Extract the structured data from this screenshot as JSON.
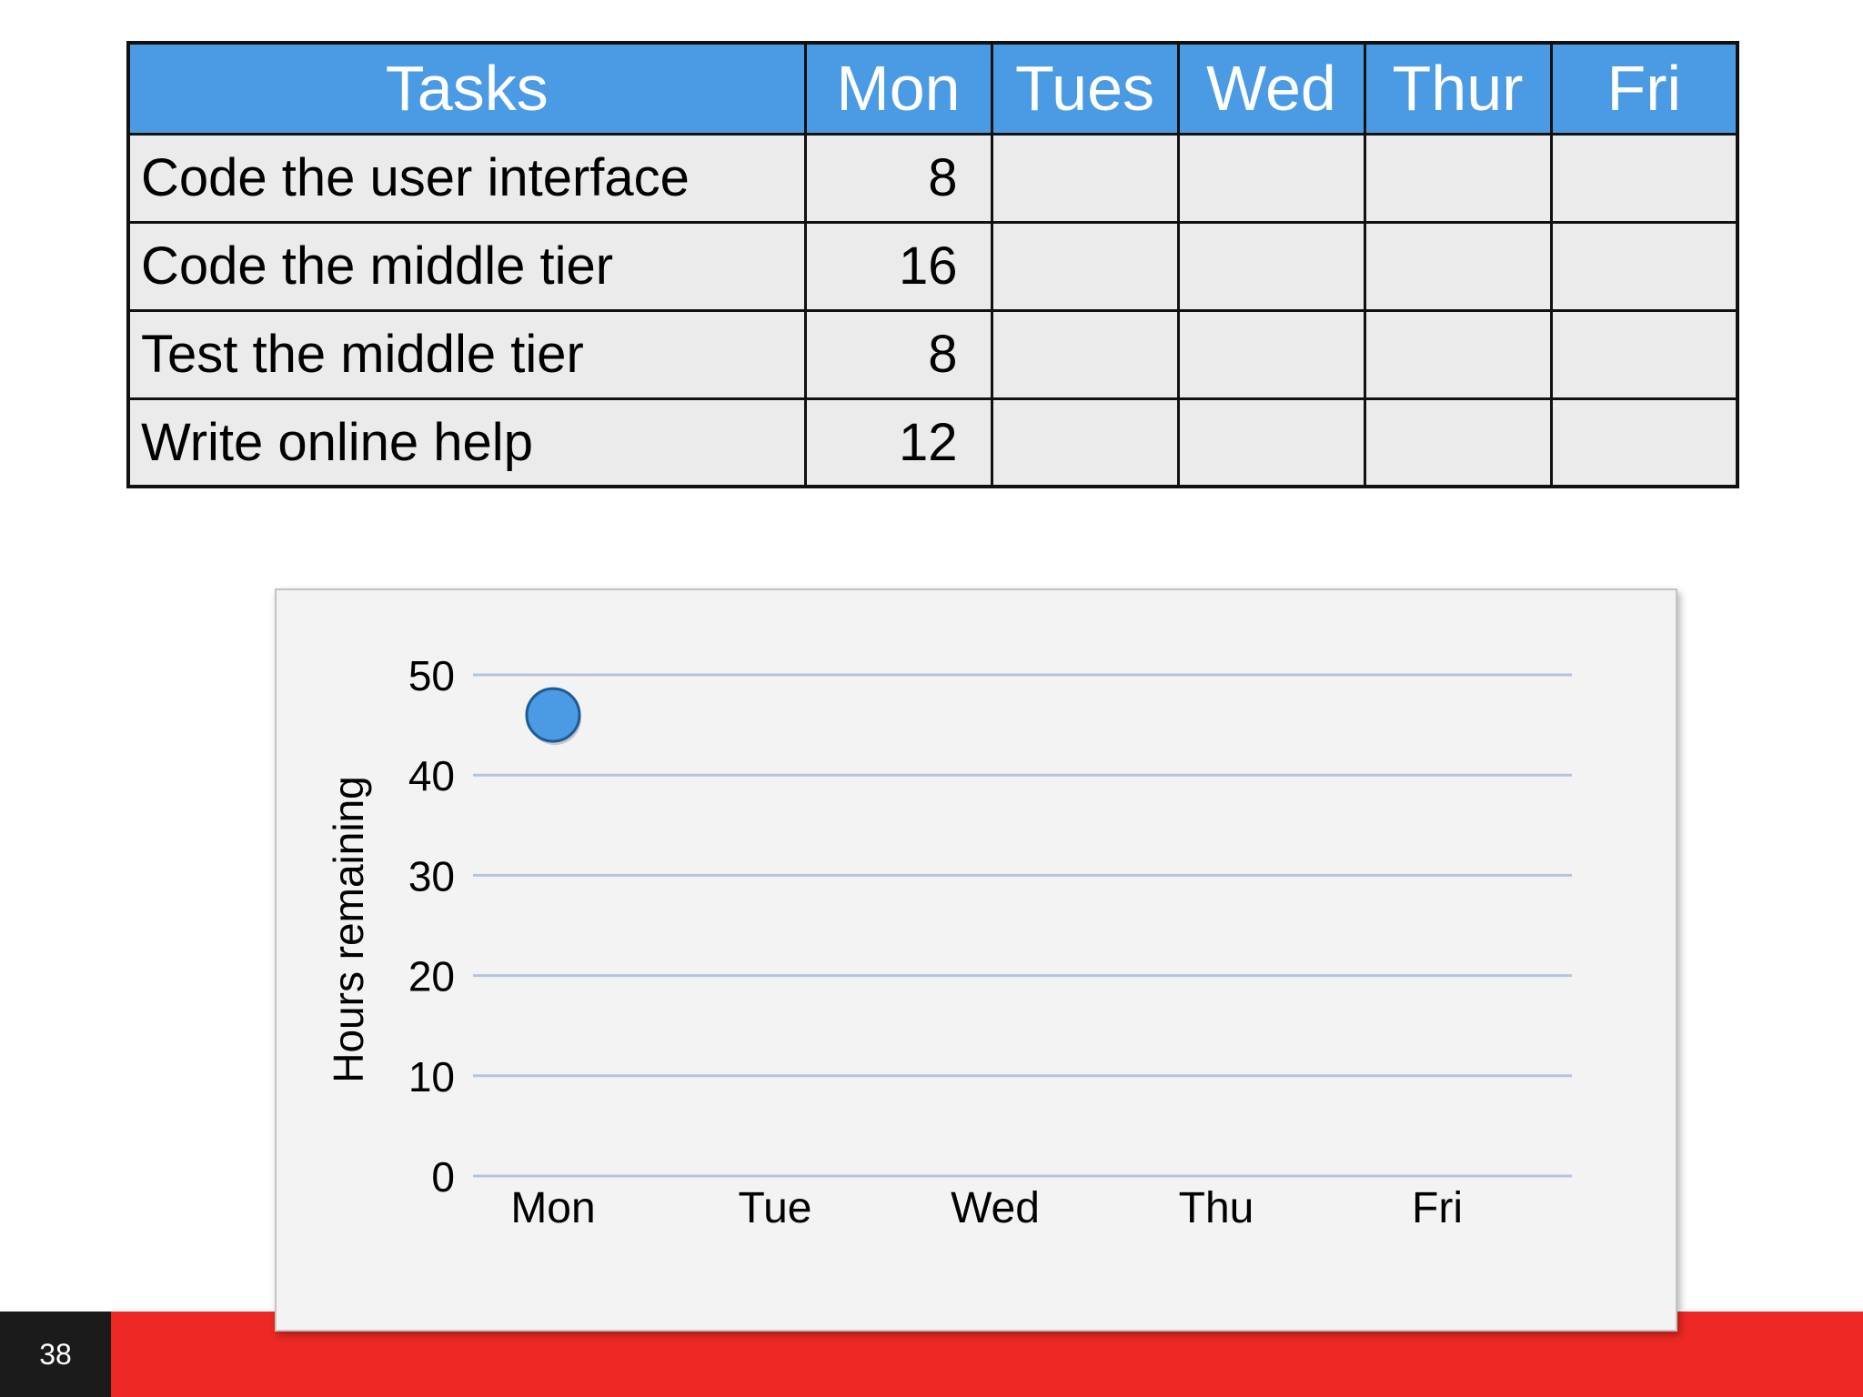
{
  "table": {
    "headers": [
      "Tasks",
      "Mon",
      "Tues",
      "Wed",
      "Thur",
      "Fri"
    ],
    "rows": [
      {
        "task": "Code the user interface",
        "mon": "8"
      },
      {
        "task": "Code the middle tier",
        "mon": "16"
      },
      {
        "task": "Test the middle tier",
        "mon": "8"
      },
      {
        "task": "Write online help",
        "mon": "12"
      }
    ]
  },
  "chart_data": {
    "type": "scatter",
    "categories": [
      "Mon",
      "Tue",
      "Wed",
      "Thu",
      "Fri"
    ],
    "values": [
      46,
      null,
      null,
      null,
      null
    ],
    "xlabel": "",
    "ylabel": "Hours remaining",
    "ylim": [
      0,
      50
    ],
    "yticks": [
      0,
      10,
      20,
      30,
      40,
      50
    ],
    "grid": true,
    "gridline_color": "#b4c4dc",
    "marker_color": "#4a9be3",
    "marker_edge_color": "#1d5a96"
  },
  "colors": {
    "header_bg": "#4a9be3",
    "cell_bg": "#ebebeb",
    "footer_red": "#ee2824",
    "footer_dark": "#1b1b1b"
  },
  "footer": {
    "page_number": "38"
  }
}
